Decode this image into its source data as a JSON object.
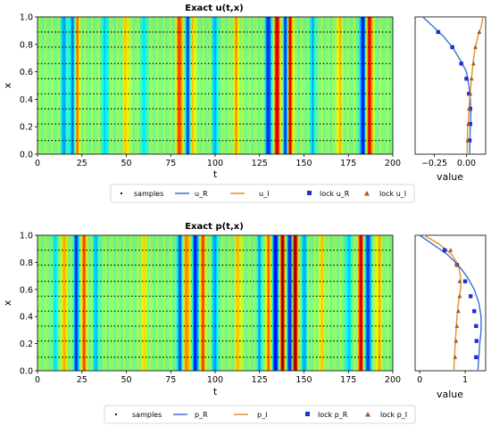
{
  "chart_data": [
    {
      "type": "heatmap",
      "title": "Exact u(t,x)",
      "xlabel": "t",
      "ylabel": "x",
      "xlim": [
        0,
        200
      ],
      "ylim": [
        0,
        1
      ],
      "xticks": [
        "0",
        "25",
        "50",
        "75",
        "100",
        "125",
        "150",
        "175",
        "200"
      ],
      "yticks": [
        "0.0",
        "0.2",
        "0.4",
        "0.6",
        "0.8",
        "1.0"
      ],
      "colormap": "jet",
      "sample_rows_x": [
        0.1,
        0.22,
        0.33,
        0.44,
        0.55,
        0.66,
        0.78,
        0.89
      ],
      "bands": [
        {
          "t": 15,
          "v": -0.5
        },
        {
          "t": 20,
          "v": -0.7
        },
        {
          "t": 22,
          "v": 0.6
        },
        {
          "t": 38,
          "v": -0.4
        },
        {
          "t": 50,
          "v": 0.35
        },
        {
          "t": 60,
          "v": -0.35
        },
        {
          "t": 80,
          "v": 0.7
        },
        {
          "t": 85,
          "v": -0.75
        },
        {
          "t": 87,
          "v": 0.5
        },
        {
          "t": 100,
          "v": -0.45
        },
        {
          "t": 112,
          "v": 0.4
        },
        {
          "t": 130,
          "v": -0.8
        },
        {
          "t": 135,
          "v": 0.9
        },
        {
          "t": 140,
          "v": -0.85
        },
        {
          "t": 142,
          "v": 1.0
        },
        {
          "t": 155,
          "v": -0.4
        },
        {
          "t": 170,
          "v": 0.35
        },
        {
          "t": 183,
          "v": -0.8
        },
        {
          "t": 187,
          "v": 0.85
        }
      ]
    },
    {
      "type": "line",
      "xlabel": "value",
      "xlim": [
        -0.4,
        0.15
      ],
      "ylim": [
        0,
        1
      ],
      "xticks": [
        "−0.25",
        "0.00"
      ],
      "series": [
        {
          "name": "u_R",
          "x": [
            -0.34,
            -0.26,
            -0.18,
            -0.11,
            -0.05,
            0.0,
            0.02,
            0.03,
            0.035,
            0.03,
            0.025
          ],
          "y": [
            1.0,
            0.93,
            0.86,
            0.78,
            0.69,
            0.6,
            0.5,
            0.4,
            0.3,
            0.2,
            0.0
          ]
        },
        {
          "name": "u_I",
          "x": [
            0.13,
            0.115,
            0.09,
            0.07,
            0.055,
            0.045,
            0.035,
            0.025,
            0.02,
            0.01,
            0.005
          ],
          "y": [
            1.0,
            0.93,
            0.86,
            0.78,
            0.69,
            0.6,
            0.5,
            0.4,
            0.3,
            0.2,
            0.0
          ]
        },
        {
          "name": "lock u_R",
          "x": [
            -0.22,
            -0.11,
            -0.04,
            0.0,
            0.02,
            0.03,
            0.03,
            0.025
          ],
          "y": [
            0.89,
            0.78,
            0.66,
            0.55,
            0.44,
            0.33,
            0.22,
            0.1
          ]
        },
        {
          "name": "lock u_I",
          "x": [
            0.1,
            0.07,
            0.055,
            0.04,
            0.03,
            0.02,
            0.015,
            0.01
          ],
          "y": [
            0.89,
            0.78,
            0.66,
            0.55,
            0.44,
            0.33,
            0.22,
            0.1
          ]
        }
      ]
    },
    {
      "type": "heatmap",
      "title": "Exact p(t,x)",
      "xlabel": "t",
      "ylabel": "x",
      "xlim": [
        0,
        200
      ],
      "ylim": [
        0,
        1
      ],
      "xticks": [
        "0",
        "25",
        "50",
        "75",
        "100",
        "125",
        "150",
        "175",
        "200"
      ],
      "yticks": [
        "0.0",
        "0.2",
        "0.4",
        "0.6",
        "0.8",
        "1.0"
      ],
      "colormap": "jet",
      "sample_rows_x": [
        0.1,
        0.22,
        0.33,
        0.44,
        0.55,
        0.66,
        0.78,
        0.89
      ],
      "bands": [
        {
          "t": 10,
          "v": -0.3
        },
        {
          "t": 15,
          "v": 0.4
        },
        {
          "t": 22,
          "v": -0.7
        },
        {
          "t": 26,
          "v": 0.6
        },
        {
          "t": 33,
          "v": -0.4
        },
        {
          "t": 60,
          "v": 0.3
        },
        {
          "t": 80,
          "v": -0.6
        },
        {
          "t": 84,
          "v": 0.55
        },
        {
          "t": 89,
          "v": -0.8
        },
        {
          "t": 93,
          "v": 0.6
        },
        {
          "t": 100,
          "v": -0.5
        },
        {
          "t": 113,
          "v": 0.4
        },
        {
          "t": 125,
          "v": -0.4
        },
        {
          "t": 130,
          "v": 0.5
        },
        {
          "t": 134,
          "v": -0.9
        },
        {
          "t": 138,
          "v": 0.95
        },
        {
          "t": 142,
          "v": -0.85
        },
        {
          "t": 145,
          "v": 1.0
        },
        {
          "t": 150,
          "v": -0.45
        },
        {
          "t": 160,
          "v": 0.3
        },
        {
          "t": 175,
          "v": -0.4
        },
        {
          "t": 182,
          "v": 0.85
        },
        {
          "t": 186,
          "v": -0.75
        },
        {
          "t": 192,
          "v": 0.4
        }
      ]
    },
    {
      "type": "line",
      "xlabel": "value",
      "xlim": [
        -0.1,
        1.45
      ],
      "ylim": [
        0,
        1
      ],
      "xticks": [
        "0",
        "1"
      ],
      "series": [
        {
          "name": "p_R",
          "x": [
            0.0,
            0.3,
            0.6,
            0.85,
            1.05,
            1.2,
            1.3,
            1.35,
            1.35,
            1.32,
            1.28
          ],
          "y": [
            1.0,
            0.93,
            0.86,
            0.78,
            0.69,
            0.6,
            0.5,
            0.4,
            0.3,
            0.2,
            0.0
          ]
        },
        {
          "name": "p_I",
          "x": [
            0.1,
            0.45,
            0.7,
            0.85,
            0.9,
            0.9,
            0.85,
            0.82,
            0.8,
            0.78,
            0.75
          ],
          "y": [
            1.0,
            0.93,
            0.86,
            0.78,
            0.69,
            0.6,
            0.5,
            0.4,
            0.3,
            0.2,
            0.0
          ]
        },
        {
          "name": "lock p_R",
          "x": [
            0.55,
            0.82,
            1.0,
            1.12,
            1.2,
            1.24,
            1.25,
            1.24
          ],
          "y": [
            0.89,
            0.78,
            0.66,
            0.55,
            0.44,
            0.33,
            0.22,
            0.1
          ]
        },
        {
          "name": "lock p_I",
          "x": [
            0.68,
            0.82,
            0.88,
            0.88,
            0.85,
            0.82,
            0.8,
            0.78
          ],
          "y": [
            0.89,
            0.78,
            0.66,
            0.55,
            0.44,
            0.33,
            0.22,
            0.1
          ]
        }
      ]
    }
  ],
  "legends": [
    {
      "items": [
        "samples",
        "u_R",
        "u_I",
        "lock u_R",
        "lock u_I"
      ]
    },
    {
      "items": [
        "samples",
        "p_R",
        "p_I",
        "lock p_R",
        "lock p_I"
      ]
    }
  ],
  "colors": {
    "real": "#3a6fcf",
    "imag": "#d9952a",
    "lock_real": "#1a2fd6",
    "lock_imag": "#b0521c",
    "sample_dots": "#000000"
  }
}
